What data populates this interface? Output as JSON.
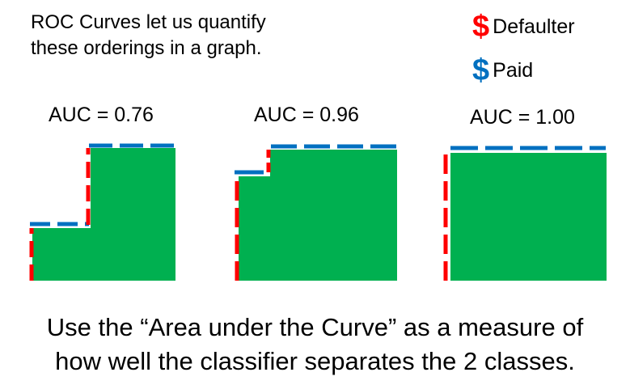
{
  "intro": {
    "line1": "ROC Curves let us quantify",
    "line2": "these orderings in a graph."
  },
  "legend": {
    "defaulter": {
      "symbol": "$",
      "label": "Defaulter",
      "color": "#ff0000"
    },
    "paid": {
      "symbol": "$",
      "label": "Paid",
      "color": "#0070c0"
    }
  },
  "colors": {
    "area_fill": "#00b050",
    "defaulter_dash": "#ff0000",
    "paid_dash": "#0070c0"
  },
  "panels": [
    {
      "auc_label": "AUC = 0.76"
    },
    {
      "auc_label": "AUC = 0.96"
    },
    {
      "auc_label": "AUC = 1.00"
    }
  ],
  "footer": {
    "line1": "Use the “Area under the Curve” as a measure of",
    "line2": "how well the classifier separates the 2 classes."
  }
}
